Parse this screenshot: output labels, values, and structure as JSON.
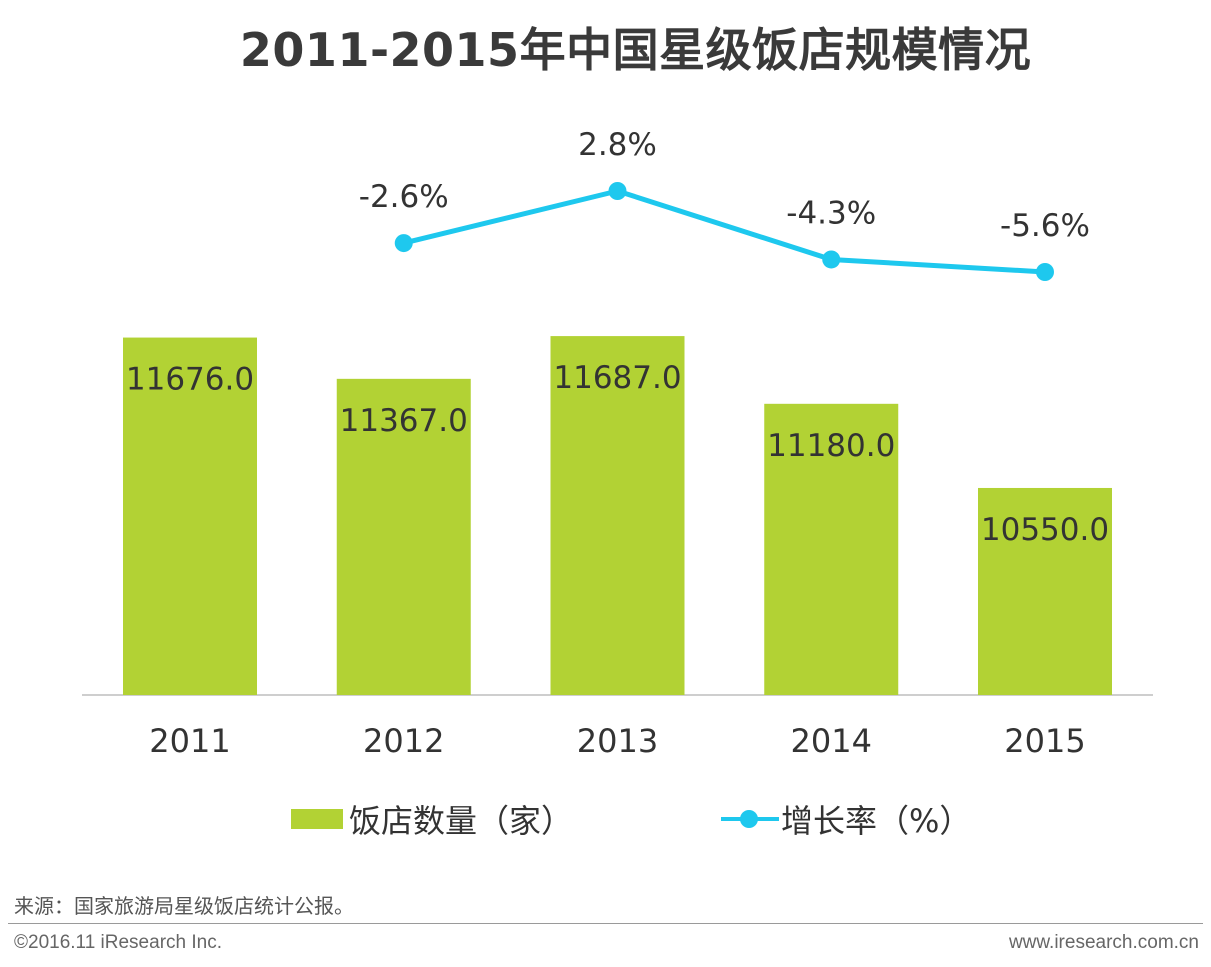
{
  "colors": {
    "bar": "#b2d234",
    "line": "#1ec8ee",
    "axis": "#bdbdbd",
    "text": "#333333"
  },
  "chart_data": {
    "type": "bar",
    "title": "2011-2015年中国星级饭店规模情况",
    "categories": [
      "2011",
      "2012",
      "2013",
      "2014",
      "2015"
    ],
    "series": [
      {
        "name": "饭店数量（家）",
        "type": "bar",
        "values": [
          11676.0,
          11367.0,
          11687.0,
          11180.0,
          10550.0
        ],
        "labels": [
          "11676.0",
          "11367.0",
          "11687.0",
          "11180.0",
          "10550.0"
        ]
      },
      {
        "name": "增长率（%）",
        "type": "line",
        "values": [
          null,
          -2.6,
          2.8,
          -4.3,
          -5.6
        ],
        "labels": [
          "",
          "-2.6%",
          "2.8%",
          "-4.3%",
          "-5.6%"
        ]
      }
    ],
    "xlabel": "",
    "ylabel": "",
    "ylim": [
      9000,
      11800
    ],
    "grid": false,
    "legend": "bottom"
  },
  "legend": {
    "bar_label": "饭店数量（家）",
    "line_label": "增长率（%）"
  },
  "source": "来源：国家旅游局星级饭店统计公报。",
  "footer": {
    "copyright": "©2016.11 iResearch Inc.",
    "website": "www.iresearch.com.cn"
  }
}
